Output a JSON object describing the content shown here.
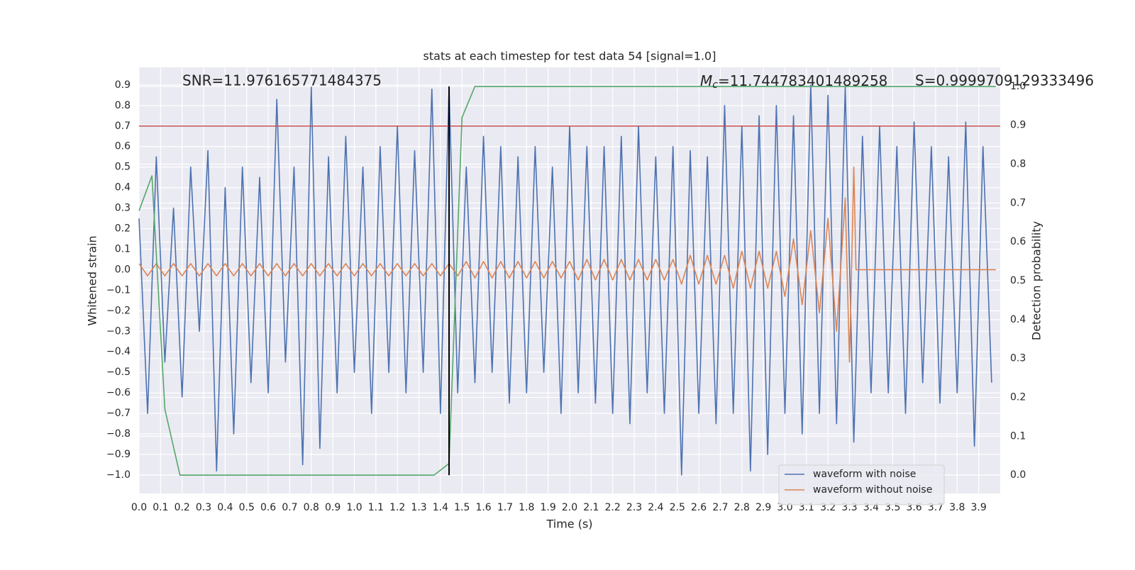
{
  "chart_data": {
    "type": "line",
    "title": "stats at each timestep for test data 54 [signal=1.0]",
    "xlabel": "Time (s)",
    "ylabel": "Whitened strain",
    "y2label": "Detection probability",
    "annotations": [
      {
        "text": "SNR=11.976165771484375"
      },
      {
        "symbol": "M",
        "subscript": "c",
        "text": "=11.744783401489258"
      },
      {
        "text": "S=0.9999709129333496"
      }
    ],
    "xlim": [
      0,
      4
    ],
    "ylim": [
      -1.09,
      0.986
    ],
    "y2lim": [
      -0.047,
      1.049
    ],
    "xticks": [
      {
        "value": 0,
        "label": "0.0"
      },
      0.1,
      0.2,
      0.3,
      0.4,
      0.5,
      0.6,
      0.7,
      0.8,
      0.9,
      {
        "value": 1,
        "label": "1.0"
      },
      1.1,
      1.2,
      1.3,
      1.4,
      1.5,
      1.6,
      1.7,
      1.8,
      1.9,
      {
        "value": 2,
        "label": "2.0"
      },
      2.1,
      2.2,
      2.3,
      2.4,
      2.5,
      2.6,
      2.7,
      2.8,
      2.9,
      {
        "value": 3,
        "label": "3.0"
      },
      3.1,
      3.2,
      3.3,
      3.4,
      3.5,
      3.6,
      3.7,
      3.8,
      3.9
    ],
    "yticks": [
      {
        "value": -1,
        "label": "−1.0"
      },
      {
        "value": -0.9,
        "label": "−0.9"
      },
      {
        "value": -0.8,
        "label": "−0.8"
      },
      {
        "value": -0.7,
        "label": "−0.7"
      },
      {
        "value": -0.6,
        "label": "−0.6"
      },
      {
        "value": -0.5,
        "label": "−0.5"
      },
      {
        "value": -0.4,
        "label": "−0.4"
      },
      {
        "value": -0.3,
        "label": "−0.3"
      },
      {
        "value": -0.2,
        "label": "−0.2"
      },
      {
        "value": -0.1,
        "label": "−0.1"
      },
      {
        "value": 0,
        "label": "0.0"
      },
      0.1,
      0.2,
      0.3,
      0.4,
      0.5,
      0.6,
      0.7,
      0.8,
      0.9
    ],
    "y2ticks": [
      {
        "value": 0,
        "label": "0.0"
      },
      0.1,
      0.2,
      0.3,
      0.4,
      0.5,
      0.6,
      0.7,
      0.8,
      0.9,
      {
        "value": 1,
        "label": "1.0"
      }
    ],
    "grid": true,
    "legend": "lower right",
    "hline": {
      "y": 0.7,
      "color": "#c44e52"
    },
    "vline": {
      "x": 1.44,
      "ymin": 0,
      "ymax": 1,
      "axis": "y2",
      "color": "#000000"
    },
    "series": [
      {
        "name": "waveform with noise",
        "color": "#4c72b0",
        "x": [
          0,
          0.04,
          0.08,
          0.12,
          0.16,
          0.2,
          0.24,
          0.28,
          0.32,
          0.36,
          0.4,
          0.44,
          0.48,
          0.52,
          0.56,
          0.6,
          0.64,
          0.68,
          0.72,
          0.76,
          0.8,
          0.84,
          0.88,
          0.92,
          0.96,
          1,
          1.04,
          1.08,
          1.12,
          1.16,
          1.2,
          1.24,
          1.28,
          1.32,
          1.36,
          1.4,
          1.44,
          1.48,
          1.52,
          1.56,
          1.6,
          1.64,
          1.68,
          1.72,
          1.76,
          1.8,
          1.84,
          1.88,
          1.92,
          1.96,
          2,
          2.04,
          2.08,
          2.12,
          2.16,
          2.2,
          2.24,
          2.28,
          2.32,
          2.36,
          2.4,
          2.44,
          2.48,
          2.52,
          2.56,
          2.6,
          2.64,
          2.68,
          2.72,
          2.76,
          2.8,
          2.84,
          2.88,
          2.92,
          2.96,
          3,
          3.04,
          3.08,
          3.12,
          3.16,
          3.2,
          3.24,
          3.28,
          3.32,
          3.36,
          3.4,
          3.44,
          3.48,
          3.52,
          3.56,
          3.6,
          3.64,
          3.68,
          3.72,
          3.76,
          3.8,
          3.84,
          3.88,
          3.92,
          3.96
        ],
        "values": [
          0.25,
          -0.7,
          0.55,
          -0.45,
          0.3,
          -0.62,
          0.5,
          -0.3,
          0.58,
          -0.98,
          0.4,
          -0.8,
          0.5,
          -0.55,
          0.45,
          -0.6,
          0.83,
          -0.45,
          0.5,
          -0.95,
          0.89,
          -0.87,
          0.55,
          -0.6,
          0.65,
          -0.5,
          0.5,
          -0.7,
          0.6,
          -0.5,
          0.7,
          -0.6,
          0.58,
          -0.5,
          0.88,
          -0.7,
          0.89,
          -0.6,
          0.5,
          -0.55,
          0.65,
          -0.5,
          0.6,
          -0.65,
          0.55,
          -0.6,
          0.6,
          -0.5,
          0.5,
          -0.7,
          0.7,
          -0.6,
          0.6,
          -0.65,
          0.6,
          -0.7,
          0.65,
          -0.75,
          0.7,
          -0.6,
          0.55,
          -0.7,
          0.6,
          -1.0,
          0.58,
          -0.7,
          0.55,
          -0.75,
          0.8,
          -0.7,
          0.7,
          -0.98,
          0.75,
          -0.9,
          0.8,
          -0.7,
          0.75,
          -0.8,
          0.9,
          -0.7,
          0.85,
          -0.75,
          0.89,
          -0.84,
          0.65,
          -0.6,
          0.7,
          -0.6,
          0.6,
          -0.7,
          0.72,
          -0.55,
          0.6,
          -0.65,
          0.55,
          -0.6,
          0.72,
          -0.86,
          0.6,
          -0.55
        ]
      },
      {
        "name": "waveform without noise",
        "color": "#dd8452",
        "x": [
          0,
          0.04,
          0.08,
          0.12,
          0.16,
          0.2,
          0.24,
          0.28,
          0.32,
          0.36,
          0.4,
          0.44,
          0.48,
          0.52,
          0.56,
          0.6,
          0.64,
          0.68,
          0.72,
          0.76,
          0.8,
          0.84,
          0.88,
          0.92,
          0.96,
          1,
          1.04,
          1.08,
          1.12,
          1.16,
          1.2,
          1.24,
          1.28,
          1.32,
          1.36,
          1.4,
          1.44,
          1.48,
          1.52,
          1.56,
          1.6,
          1.64,
          1.68,
          1.72,
          1.76,
          1.8,
          1.84,
          1.88,
          1.92,
          1.96,
          2,
          2.04,
          2.08,
          2.12,
          2.16,
          2.2,
          2.24,
          2.28,
          2.32,
          2.36,
          2.4,
          2.44,
          2.48,
          2.52,
          2.56,
          2.6,
          2.64,
          2.68,
          2.72,
          2.76,
          2.8,
          2.84,
          2.88,
          2.92,
          2.96,
          3,
          3.04,
          3.08,
          3.12,
          3.16,
          3.2,
          3.24,
          3.28,
          3.3,
          3.32,
          3.33,
          3.98
        ],
        "values": [
          0.03,
          -0.03,
          0.03,
          -0.03,
          0.03,
          -0.03,
          0.03,
          -0.03,
          0.03,
          -0.03,
          0.03,
          -0.03,
          0.03,
          -0.03,
          0.03,
          -0.03,
          0.03,
          -0.03,
          0.03,
          -0.03,
          0.03,
          -0.03,
          0.03,
          -0.03,
          0.03,
          -0.03,
          0.03,
          -0.03,
          0.03,
          -0.03,
          0.03,
          -0.03,
          0.03,
          -0.03,
          0.03,
          -0.03,
          0.03,
          -0.03,
          0.04,
          -0.04,
          0.04,
          -0.04,
          0.04,
          -0.04,
          0.04,
          -0.04,
          0.04,
          -0.04,
          0.04,
          -0.04,
          0.04,
          -0.05,
          0.05,
          -0.05,
          0.05,
          -0.05,
          0.05,
          -0.05,
          0.05,
          -0.05,
          0.05,
          -0.05,
          0.05,
          -0.07,
          0.07,
          -0.07,
          0.07,
          -0.07,
          0.07,
          -0.09,
          0.09,
          -0.09,
          0.09,
          -0.09,
          0.09,
          -0.13,
          0.15,
          -0.17,
          0.19,
          -0.21,
          0.25,
          -0.3,
          0.35,
          -0.45,
          0.5,
          0,
          0
        ]
      },
      {
        "color": "#55a868",
        "axis": "y2",
        "x": [
          0,
          0.06,
          0.12,
          0.19,
          1.37,
          1.44,
          1.5,
          1.56,
          3.98
        ],
        "values": [
          0.68,
          0.77,
          0.17,
          0,
          0,
          0.03,
          0.92,
          1.0,
          1.0
        ]
      }
    ]
  }
}
